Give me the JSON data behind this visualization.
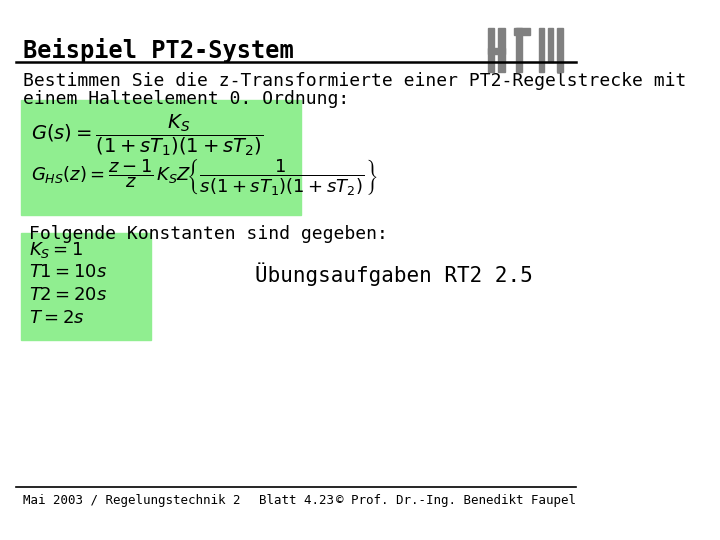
{
  "title": "Beispiel PT2-System",
  "subtitle_line1": "Bestimmen Sie die z-Transformierte einer PT2-Regelstrecke mit",
  "subtitle_line2": "einem Halteelement 0. Ordnung:",
  "folgende_text": "Folgende Konstanten sind gegeben:",
  "ubung_text": "Ubungsaufgaben RT2 2.5",
  "footer_left": "Mai 2003 / Regelungstechnik 2",
  "footer_center": "Blatt 4.23",
  "footer_right": "Prof. Dr.-Ing. Benedikt Faupel",
  "green_bg": "#90EE90",
  "title_color": "#000000",
  "text_color": "#000000",
  "bg_color": "#ffffff",
  "logo_color": "#808080",
  "title_fontsize": 17,
  "body_fontsize": 13,
  "formula_fontsize": 13,
  "footer_fontsize": 9
}
